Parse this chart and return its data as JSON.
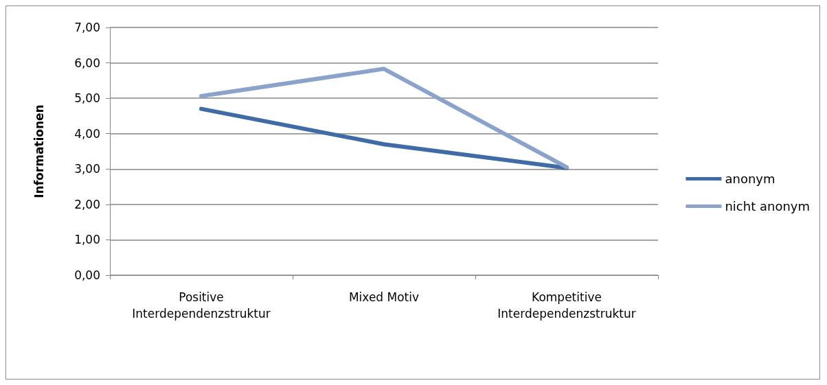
{
  "chart_data": {
    "type": "line",
    "ylabel": "Informationen",
    "categories": [
      "Positive Interdependenzstruktur",
      "Mixed Motiv",
      "Kompetitive Interdependenzstruktur"
    ],
    "series": [
      {
        "name": "anonym",
        "color": "#3f6ca6",
        "values": [
          4.7,
          3.7,
          3.03
        ]
      },
      {
        "name": "nicht anonym",
        "color": "#8ba3cb",
        "values": [
          5.06,
          5.83,
          3.05
        ]
      }
    ],
    "ylim": [
      0,
      7
    ],
    "yticks": [
      {
        "value": 0,
        "label": "0,00"
      },
      {
        "value": 1,
        "label": "1,00"
      },
      {
        "value": 2,
        "label": "2,00"
      },
      {
        "value": 3,
        "label": "3,00"
      },
      {
        "value": 4,
        "label": "4,00"
      },
      {
        "value": 5,
        "label": "5,00"
      },
      {
        "value": 6,
        "label": "6,00"
      },
      {
        "value": 7,
        "label": "7,00"
      }
    ],
    "grid": "y",
    "legend": "right",
    "marker": "none",
    "line_style": "solid"
  }
}
